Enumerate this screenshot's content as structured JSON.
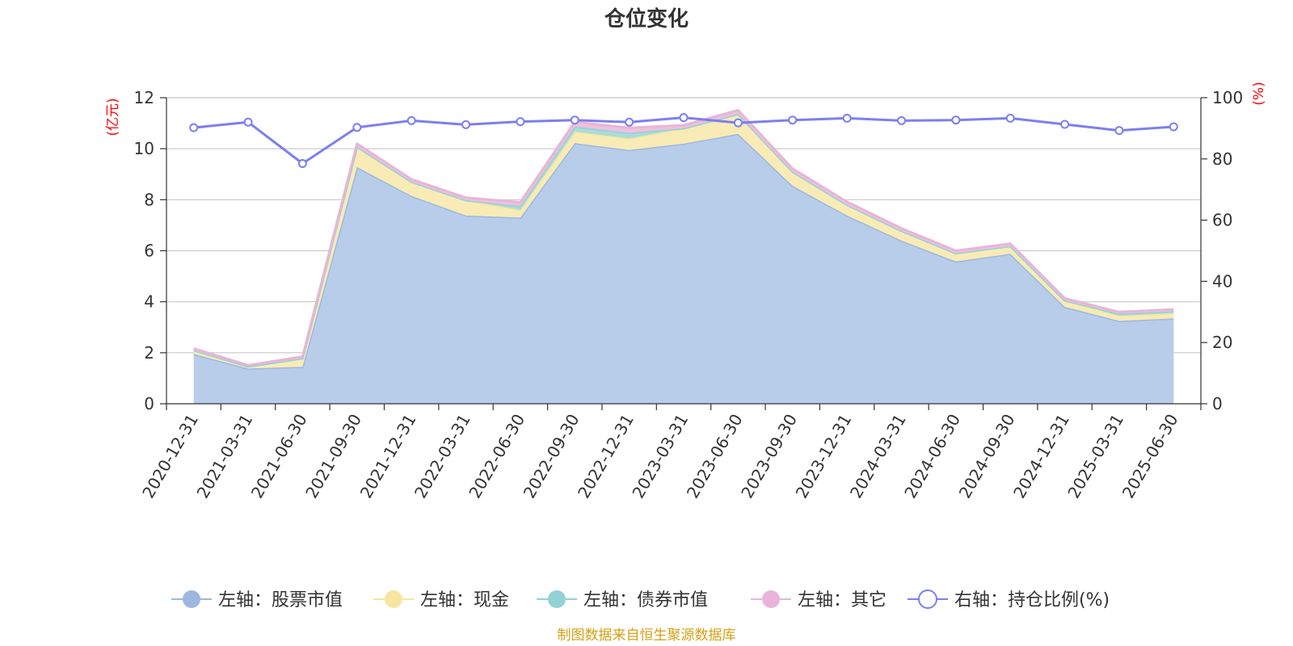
{
  "title": "仓位变化",
  "source": "制图数据来自恒生聚源数据库",
  "chart_data": {
    "type": "area",
    "categories": [
      "2020-12-31",
      "2021-03-31",
      "2021-06-30",
      "2021-09-30",
      "2021-12-31",
      "2022-03-31",
      "2022-06-30",
      "2022-09-30",
      "2022-12-31",
      "2023-03-31",
      "2023-06-30",
      "2023-09-30",
      "2023-12-31",
      "2024-03-31",
      "2024-06-30",
      "2024-09-30",
      "2024-12-31",
      "2025-03-31",
      "2025-06-30"
    ],
    "left_axis": {
      "unit": "(亿元)",
      "ylim": [
        0,
        12
      ],
      "ticks": [
        "0",
        "2",
        "4",
        "6",
        "8",
        "10",
        "12"
      ]
    },
    "right_axis": {
      "unit": "(%)",
      "ylim": [
        0,
        100
      ],
      "ticks": [
        "0",
        "20",
        "40",
        "60",
        "80",
        "100"
      ]
    },
    "grid": true,
    "legend_position": "bottom",
    "series": [
      {
        "name": "左轴：股票市值",
        "axis": "left",
        "type": "area",
        "color": "#9db8e0",
        "fill": "#b7cdea",
        "values": [
          1.95,
          1.38,
          1.45,
          9.28,
          8.15,
          7.38,
          7.3,
          10.22,
          9.95,
          10.2,
          10.58,
          8.55,
          7.38,
          6.4,
          5.58,
          5.88,
          3.8,
          3.25,
          3.35
        ]
      },
      {
        "name": "左轴：现金",
        "axis": "left",
        "type": "area",
        "color": "#f7e6a0",
        "fill": "#f9ebb5",
        "values": [
          0.15,
          0.08,
          0.33,
          0.8,
          0.55,
          0.6,
          0.3,
          0.45,
          0.45,
          0.6,
          0.78,
          0.55,
          0.42,
          0.38,
          0.32,
          0.3,
          0.25,
          0.2,
          0.2
        ]
      },
      {
        "name": "左轴：债券市值",
        "axis": "left",
        "type": "area",
        "color": "#93d2d4",
        "fill": "#a8dcd9",
        "values": [
          0.0,
          0.0,
          0.0,
          0.0,
          0.0,
          0.0,
          0.15,
          0.2,
          0.22,
          0.0,
          0.0,
          0.0,
          0.0,
          0.0,
          0.0,
          0.0,
          0.0,
          0.08,
          0.08
        ]
      },
      {
        "name": "左轴：其它",
        "axis": "left",
        "type": "area",
        "color": "#e8b5d8",
        "fill": "#edc1de",
        "values": [
          0.07,
          0.05,
          0.07,
          0.12,
          0.1,
          0.1,
          0.15,
          0.18,
          0.2,
          0.12,
          0.15,
          0.12,
          0.12,
          0.1,
          0.1,
          0.1,
          0.08,
          0.07,
          0.07
        ]
      },
      {
        "name": "右轴：持仓比例(%)",
        "axis": "right",
        "type": "line",
        "color": "#7b7ff0",
        "values": [
          90.2,
          92.0,
          78.5,
          90.3,
          92.5,
          91.2,
          92.2,
          92.7,
          92.0,
          93.5,
          91.8,
          92.7,
          93.3,
          92.5,
          92.7,
          93.3,
          91.3,
          89.3,
          90.5
        ]
      }
    ]
  }
}
